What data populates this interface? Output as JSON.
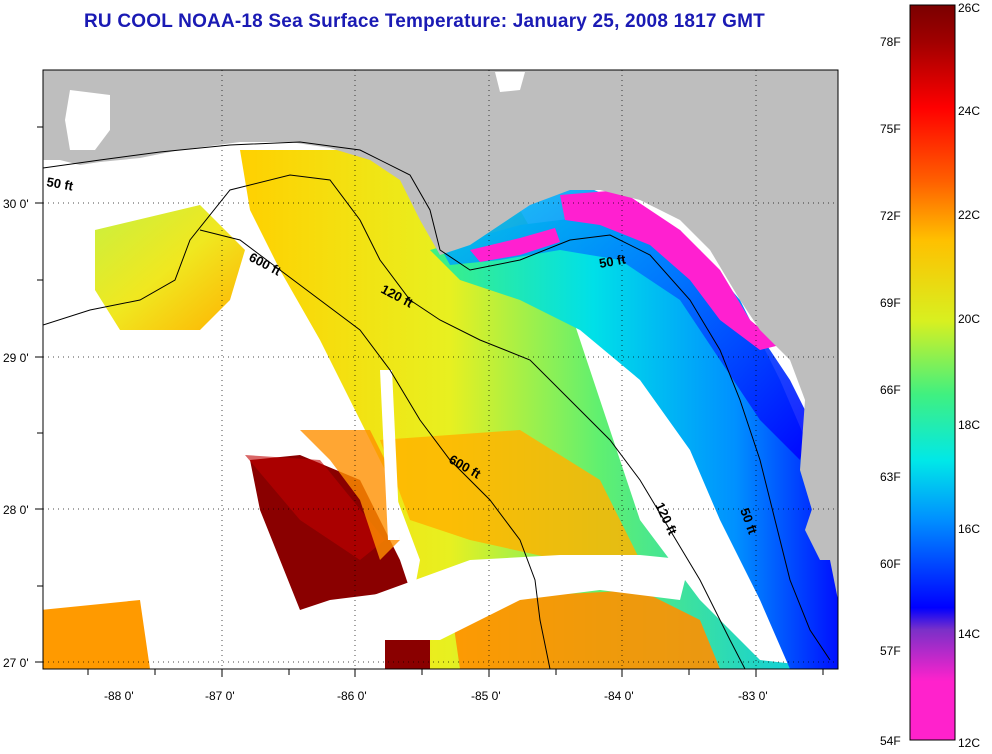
{
  "title": "RU COOL  NOAA-18  Sea Surface Temperature:  January 25, 2008 1817 GMT",
  "map": {
    "lon_ticks": [
      "-88 0'",
      "-87 0'",
      "-86 0'",
      "-85 0'",
      "-84 0'",
      "-83 0'"
    ],
    "lat_ticks": [
      "30 0'",
      "29 0'",
      "28 0'",
      "27 0'"
    ],
    "contour_labels": [
      "50 ft",
      "600 ft",
      "120 ft",
      "50 ft",
      "600 ft",
      "120 ft",
      "50 ft"
    ],
    "land_color": "#bebebe",
    "cloud_color": "#ffffff"
  },
  "colorbar": {
    "fahrenheit_labels": [
      "78F",
      "75F",
      "72F",
      "69F",
      "66F",
      "63F",
      "60F",
      "57F",
      "54F"
    ],
    "celsius_labels": [
      "26C",
      "24C",
      "22C",
      "20C",
      "18C",
      "16C",
      "14C",
      "12C"
    ],
    "colors": [
      "#ff22cc",
      "#7a30c8",
      "#0000ff",
      "#0090ff",
      "#00e8e8",
      "#40f080",
      "#d8f020",
      "#ffc000",
      "#ff6000",
      "#ff0000",
      "#a00000",
      "#7a0000"
    ]
  }
}
